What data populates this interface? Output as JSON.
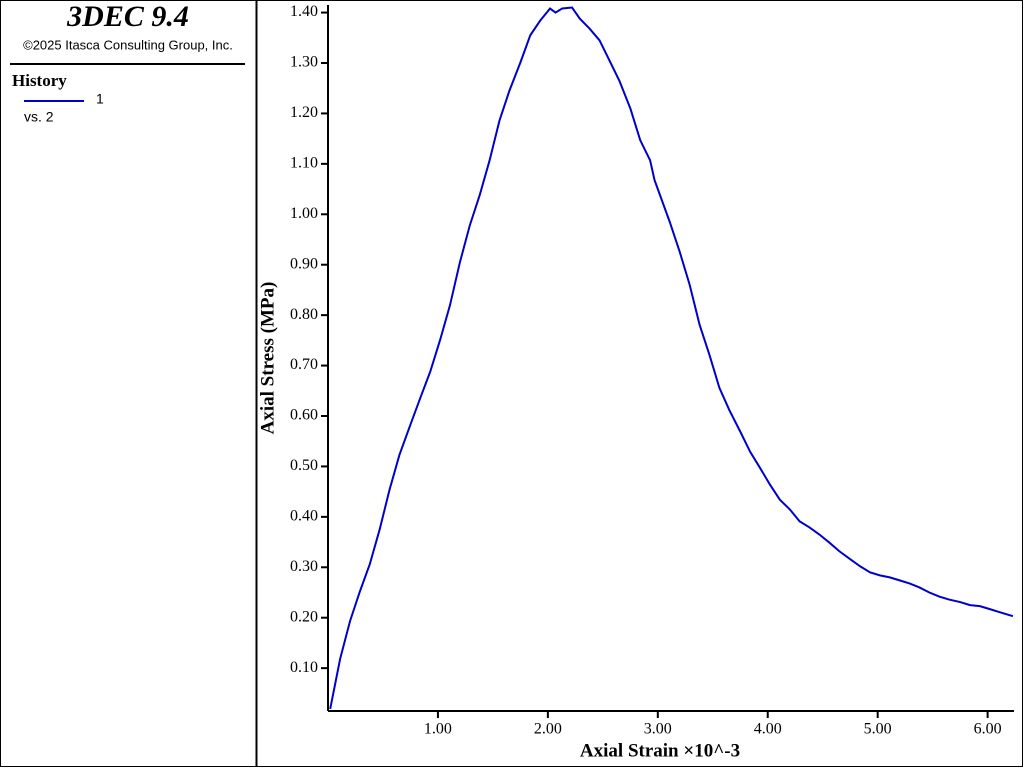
{
  "header": {
    "title": "3DEC 9.4",
    "copyright": "©2025 Itasca Consulting Group, Inc.",
    "legend_title": "History",
    "legend_note": "vs. 2"
  },
  "chart_data": {
    "type": "line",
    "x_label": "Axial Strain ×10^-3",
    "y_label": "Axial Stress (MPa)",
    "xlim": [
      0,
      6.24
    ],
    "ylim": [
      0.015,
      1.415
    ],
    "xticks": [
      {
        "value": 1,
        "label": "1.00"
      },
      {
        "value": 2,
        "label": "2.00"
      },
      {
        "value": 3,
        "label": "3.00"
      },
      {
        "value": 4,
        "label": "4.00"
      },
      {
        "value": 5,
        "label": "5.00"
      },
      {
        "value": 6,
        "label": "6.00"
      }
    ],
    "yticks": [
      {
        "value": 0.1,
        "label": "0.10"
      },
      {
        "value": 0.2,
        "label": "0.20"
      },
      {
        "value": 0.3,
        "label": "0.30"
      },
      {
        "value": 0.4,
        "label": "0.40"
      },
      {
        "value": 0.5,
        "label": "0.50"
      },
      {
        "value": 0.6,
        "label": "0.60"
      },
      {
        "value": 0.7,
        "label": "0.70"
      },
      {
        "value": 0.8,
        "label": "0.80"
      },
      {
        "value": 0.9,
        "label": "0.90"
      },
      {
        "value": 1.0,
        "label": "1.00"
      },
      {
        "value": 1.1,
        "label": "1.10"
      },
      {
        "value": 1.2,
        "label": "1.20"
      },
      {
        "value": 1.3,
        "label": "1.30"
      },
      {
        "value": 1.4,
        "label": "1.40"
      }
    ],
    "x": [
      0.02,
      0.11,
      0.2,
      0.29,
      0.38,
      0.47,
      0.56,
      0.65,
      0.75,
      0.84,
      0.93,
      1.02,
      1.11,
      1.2,
      1.29,
      1.38,
      1.47,
      1.56,
      1.65,
      1.75,
      1.84,
      1.93,
      2.02,
      2.07,
      2.13,
      2.22,
      2.29,
      2.38,
      2.47,
      2.56,
      2.65,
      2.75,
      2.84,
      2.93,
      2.97,
      3.02,
      3.11,
      3.2,
      3.29,
      3.38,
      3.47,
      3.56,
      3.65,
      3.75,
      3.84,
      3.93,
      4.02,
      4.11,
      4.2,
      4.29,
      4.38,
      4.47,
      4.56,
      4.65,
      4.75,
      4.84,
      4.93,
      5.02,
      5.11,
      5.2,
      5.29,
      5.38,
      5.47,
      5.56,
      5.65,
      5.75,
      5.84,
      5.93,
      6.02,
      6.11,
      6.23
    ],
    "series": [
      {
        "name": "1",
        "color": "#0000cc",
        "values": [
          0.019,
          0.118,
          0.193,
          0.252,
          0.306,
          0.375,
          0.454,
          0.523,
          0.583,
          0.636,
          0.688,
          0.751,
          0.82,
          0.905,
          0.978,
          1.038,
          1.107,
          1.186,
          1.245,
          1.301,
          1.355,
          1.384,
          1.408,
          1.4,
          1.408,
          1.41,
          1.388,
          1.368,
          1.345,
          1.305,
          1.265,
          1.21,
          1.147,
          1.107,
          1.068,
          1.038,
          0.984,
          0.925,
          0.86,
          0.781,
          0.721,
          0.656,
          0.612,
          0.569,
          0.529,
          0.497,
          0.464,
          0.434,
          0.415,
          0.391,
          0.379,
          0.365,
          0.349,
          0.332,
          0.316,
          0.302,
          0.29,
          0.284,
          0.28,
          0.274,
          0.268,
          0.26,
          0.25,
          0.242,
          0.236,
          0.231,
          0.225,
          0.223,
          0.217,
          0.211,
          0.203
        ]
      }
    ]
  }
}
